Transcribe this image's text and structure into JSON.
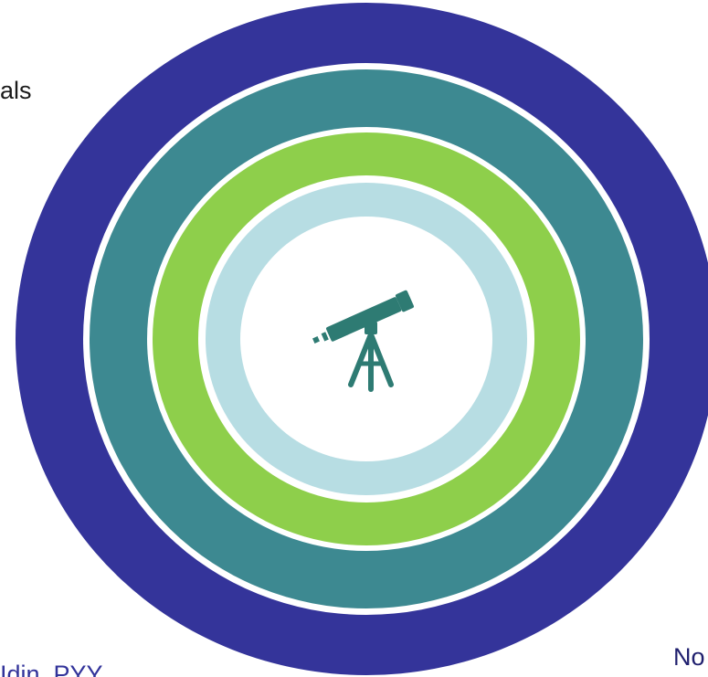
{
  "labels": {
    "top_left": "als",
    "bottom_left": "Idin, PYY",
    "bottom_right": "No"
  },
  "rings": [
    {
      "name": "outer-ring",
      "color": "#34349a"
    },
    {
      "name": "teal-ring",
      "color": "#3d8991"
    },
    {
      "name": "green-ring",
      "color": "#8ecf4b"
    },
    {
      "name": "light-blue-ring",
      "color": "#b7dde3"
    },
    {
      "name": "center-disc",
      "color": "#ffffff"
    }
  ],
  "separator_color": "#ffffff",
  "center_icon": {
    "name": "telescope-icon",
    "color": "#2e7b73"
  }
}
